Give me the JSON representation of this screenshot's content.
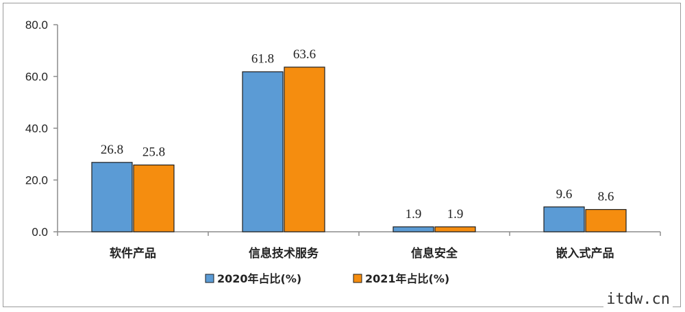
{
  "chart_data": {
    "type": "bar",
    "title": "",
    "xlabel": "",
    "ylabel": "",
    "categories": [
      "软件产品",
      "信息技术服务",
      "信息安全",
      "嵌入式产品"
    ],
    "series": [
      {
        "name": "2020年占比(%)",
        "values": [
          26.8,
          61.8,
          1.9,
          9.6
        ],
        "color": "#5b9bd5"
      },
      {
        "name": "2021年占比(%)",
        "values": [
          25.8,
          63.6,
          1.9,
          8.6
        ],
        "color": "#f58d0f"
      }
    ],
    "value_labels": [
      [
        "26.8",
        "61.8",
        "1.9",
        "9.6"
      ],
      [
        "25.8",
        "63.6",
        "1.9",
        "8.6"
      ]
    ],
    "yticks": [
      "0.0",
      "20.0",
      "40.0",
      "60.0",
      "80.0"
    ],
    "ylim": [
      0,
      80
    ],
    "grid": false,
    "legend_position": "bottom"
  },
  "watermark": "itdw.cn"
}
